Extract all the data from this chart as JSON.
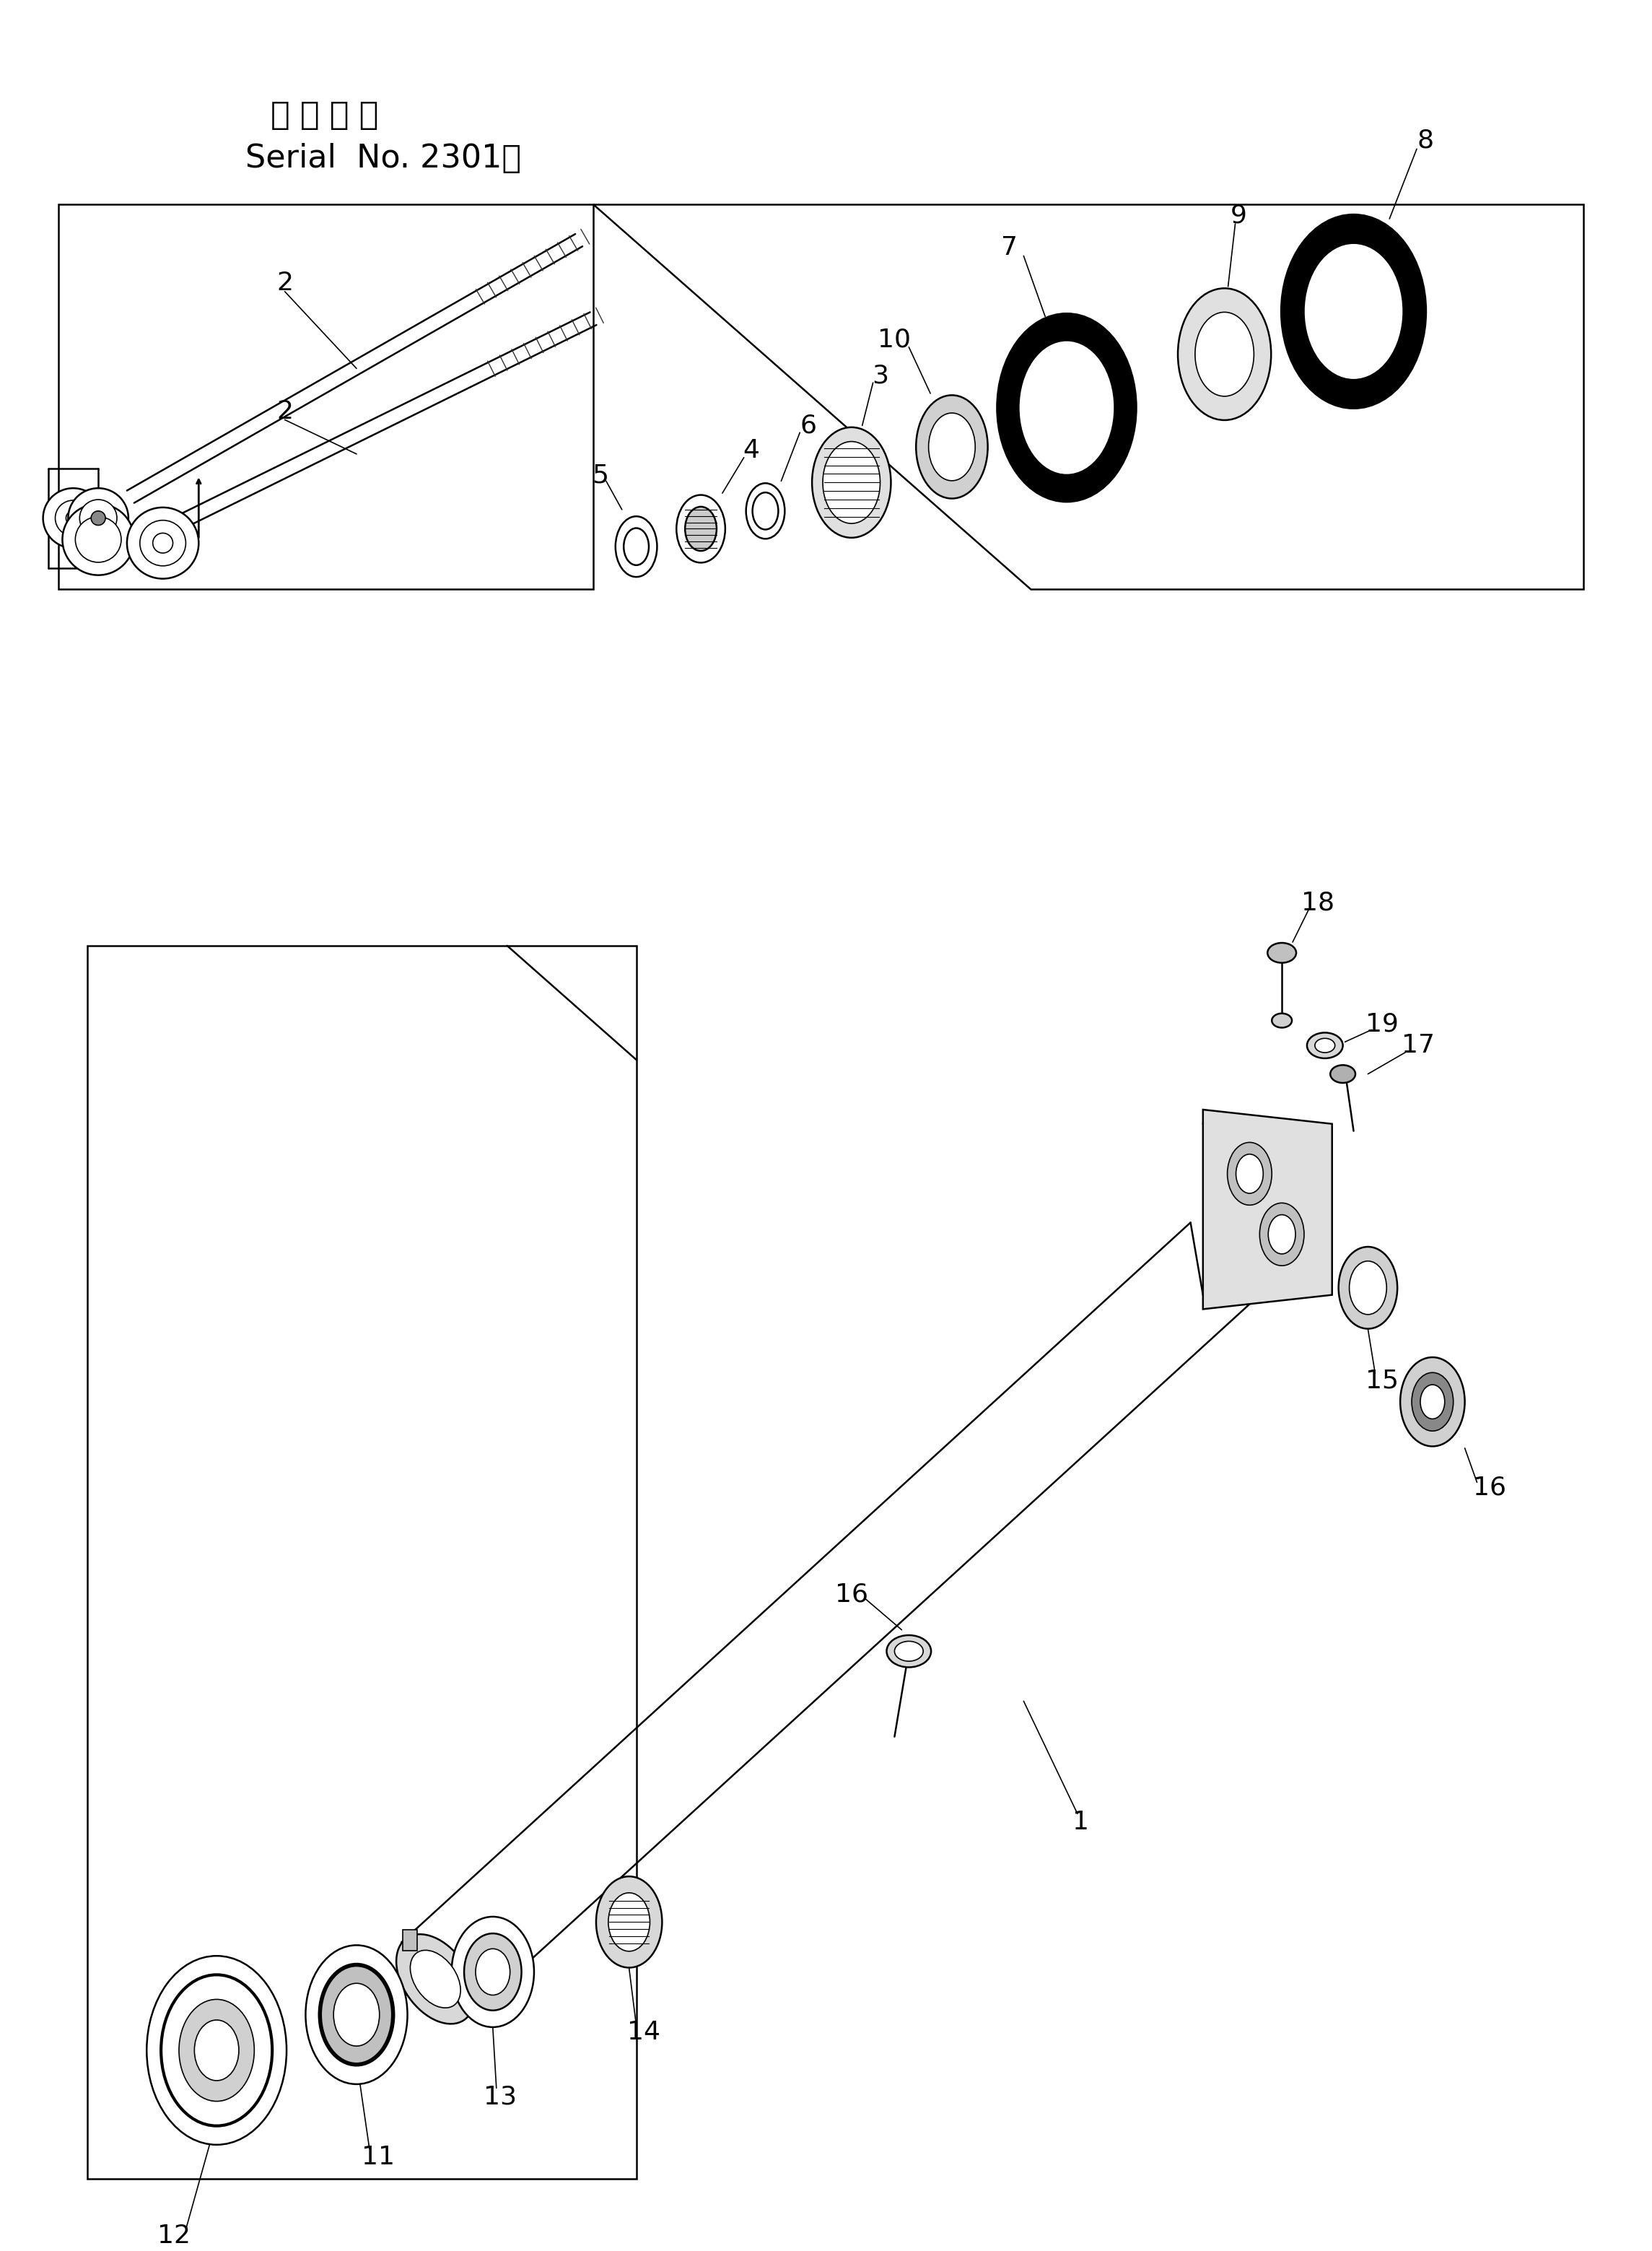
{
  "bg_color": "#ffffff",
  "line_color": "#000000",
  "title_line1": "適 用 号 機",
  "title_line2": "Serial  No. 2301～",
  "fig_width": 22.89,
  "fig_height": 31.18
}
